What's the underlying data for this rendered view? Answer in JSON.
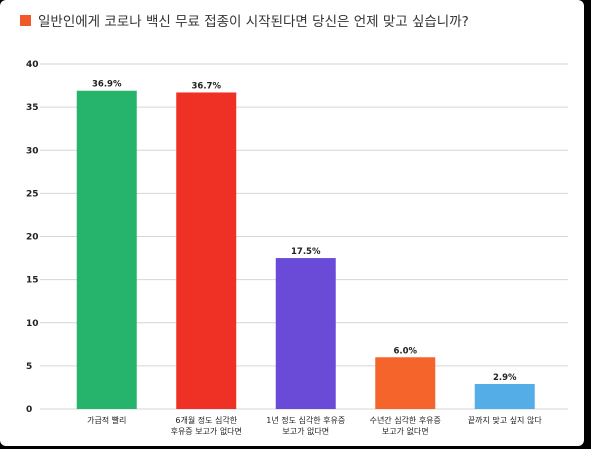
{
  "chart_data": {
    "type": "bar",
    "title": "일반인에게 코로나 백신 무료 접종이 시작된다면 당신은 언제 맞고 싶습니까?",
    "title_marker_color": "#ef5a28",
    "ylim": [
      0,
      40
    ],
    "yticks": [
      "0",
      "5",
      "10",
      "15",
      "20",
      "25",
      "30",
      "35",
      "40"
    ],
    "grid": true,
    "categories": [
      [
        "가급적 빨리"
      ],
      [
        "6개월 정도 심각한",
        "후유증 보고가 없다면"
      ],
      [
        "1년 정도 심각한 후유증",
        "보고가 없다면"
      ],
      [
        "수년간 심각한 후유증",
        "보고가 없다면"
      ],
      [
        "끝까지 맞고 싶지 않다"
      ]
    ],
    "values": [
      36.9,
      36.7,
      17.5,
      6.0,
      2.9
    ],
    "value_labels": [
      "36.9%",
      "36.7%",
      "17.5%",
      "6.0%",
      "2.9%"
    ],
    "colors": [
      "#26b36b",
      "#ee3124",
      "#6a4bd8",
      "#f5652b",
      "#55ade8"
    ]
  }
}
